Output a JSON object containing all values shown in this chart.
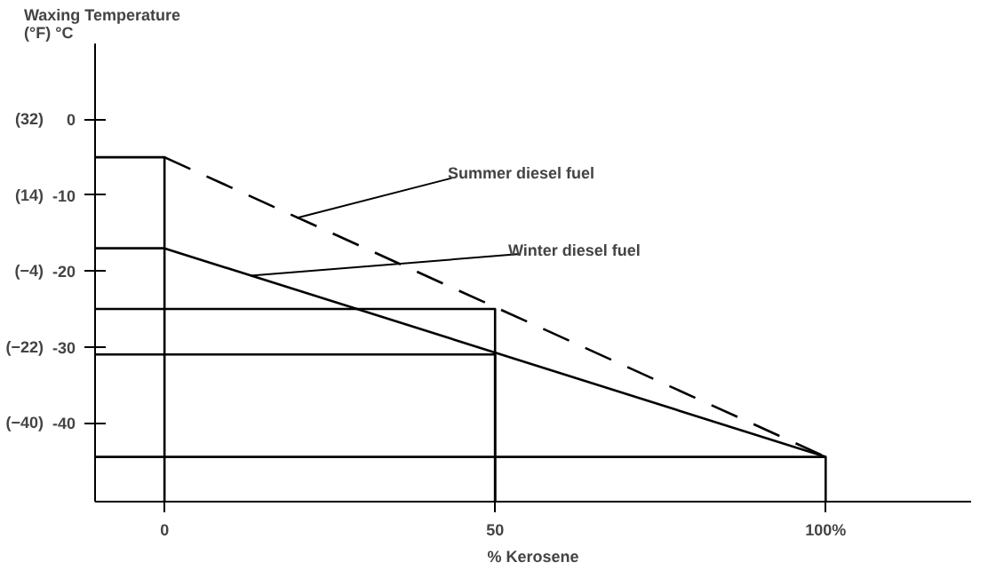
{
  "chart_data": {
    "type": "line",
    "ylabel": "Waxing Temperature\n(°F) °C",
    "xlabel": "% Kerosene",
    "xlim": [
      -10.5,
      122
    ],
    "ylim": [
      -50.4,
      10
    ],
    "xticks": [
      0,
      50,
      {
        "value": 100,
        "label": "100%"
      }
    ],
    "yticks": [
      0,
      -10,
      -20,
      -30,
      -40
    ],
    "y2lim": [
      -58.72,
      50
    ],
    "y2ticks": [
      {
        "value": 32,
        "label": "(32)"
      },
      {
        "value": 14,
        "label": "(14)"
      },
      {
        "value": -4,
        "label": "(−4)"
      },
      {
        "value": -22,
        "label": "(−22)"
      },
      {
        "value": -40,
        "label": "(−40)"
      }
    ],
    "grid": false,
    "marker": "none",
    "series": [
      {
        "color": "#000000",
        "line_style": "dashed",
        "x": [
          0,
          100
        ],
        "values": [
          -5,
          -44.5
        ]
      },
      {
        "color": "#000000",
        "line_style": "solid",
        "x": [
          -10.5,
          0,
          100
        ],
        "values": [
          -17,
          -17,
          -44.5
        ]
      },
      {
        "color": "#000000",
        "line_style": "solid",
        "x": [
          -10.5,
          0,
          0
        ],
        "values": [
          -5,
          -5,
          -50.4
        ]
      },
      {
        "color": "#000000",
        "line_style": "solid",
        "x": [
          -10.5,
          50,
          50
        ],
        "values": [
          -25,
          -25,
          -50.4
        ]
      },
      {
        "color": "#000000",
        "line_style": "solid",
        "x": [
          -10.5,
          50,
          50
        ],
        "values": [
          -31,
          -31,
          -50.4
        ]
      },
      {
        "color": "#000000",
        "line_style": "solid",
        "x": [
          -10.5,
          100,
          100
        ],
        "values": [
          -44.5,
          -44.5,
          -50.4
        ]
      }
    ],
    "annotations": [
      {
        "text": "Summer diesel fuel",
        "x": 20,
        "y": -13
      },
      {
        "text": "Winter diesel fuel",
        "x": 13,
        "y": -20.6
      }
    ]
  }
}
